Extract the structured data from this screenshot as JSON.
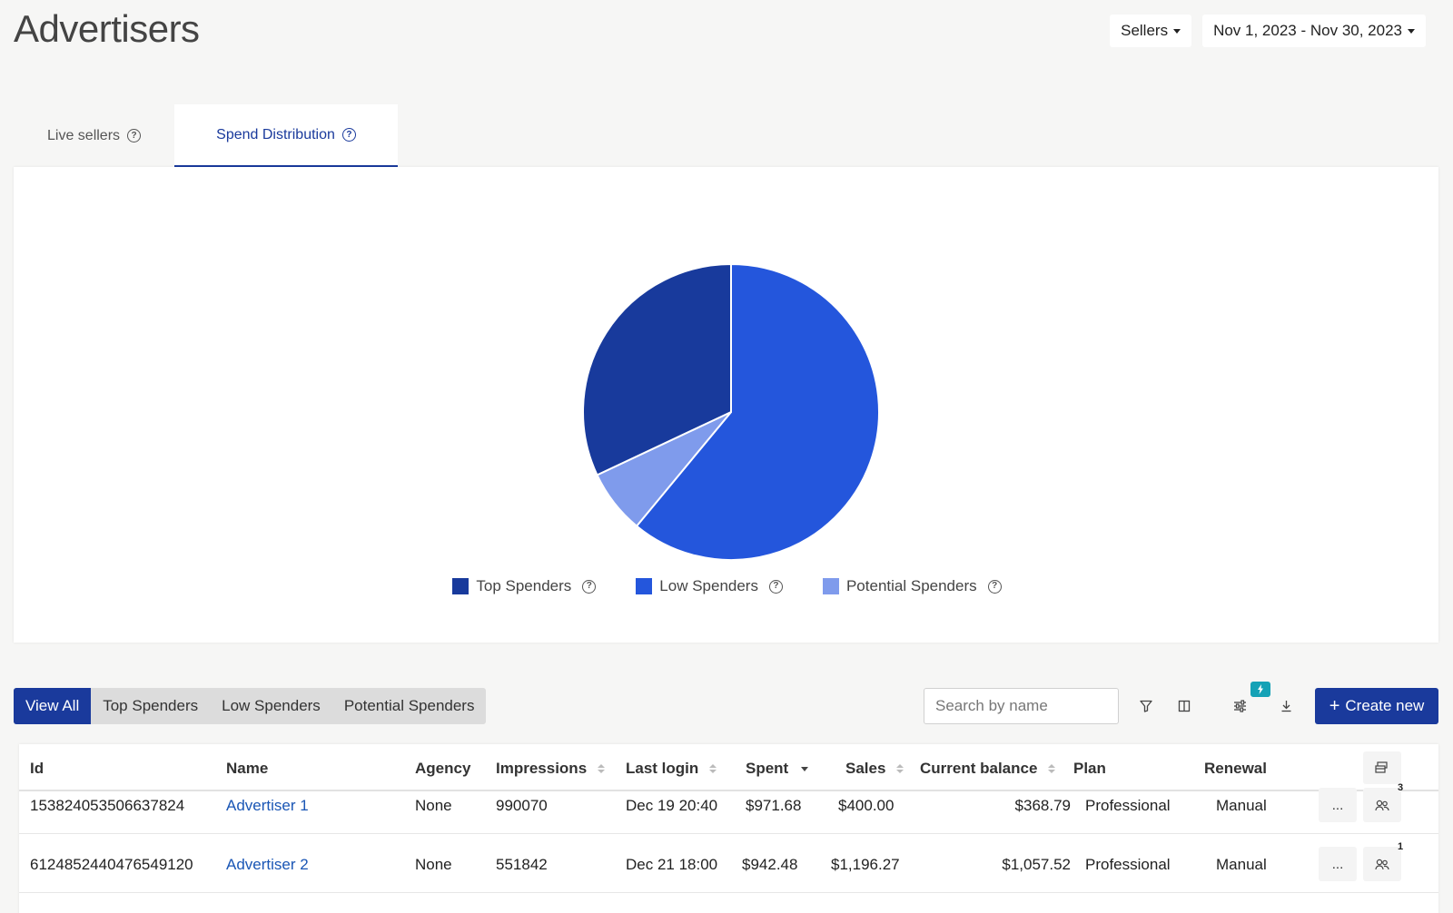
{
  "header": {
    "title": "Advertisers"
  },
  "filters": {
    "sellers_label": "Sellers",
    "date_range_label": "Nov 1, 2023 - Nov 30, 2023"
  },
  "tabs": [
    {
      "label": "Live sellers"
    },
    {
      "label": "Spend Distribution"
    }
  ],
  "colors": {
    "top": "#183a9c",
    "low": "#2456dc",
    "potential": "#7f9bec",
    "accent": "#1a3a9c"
  },
  "chart_data": {
    "type": "pie",
    "slices": [
      {
        "label": "Top Spenders",
        "value": 32
      },
      {
        "label": "Low Spenders",
        "value": 61
      },
      {
        "label": "Potential Spenders",
        "value": 7
      }
    ],
    "legend_position": "bottom"
  },
  "segments": [
    {
      "label": "View All"
    },
    {
      "label": "Top Spenders"
    },
    {
      "label": "Low Spenders"
    },
    {
      "label": "Potential Spenders"
    }
  ],
  "toolbar": {
    "search_placeholder": "Search by name",
    "create_label": "Create new",
    "icons": [
      "filter-icon",
      "columns-icon",
      "sliders-icon",
      "download-icon",
      "bolt-icon",
      "plus-icon"
    ]
  },
  "table": {
    "columns": [
      "Id",
      "Name",
      "Agency",
      "Impressions",
      "Last login",
      "Spent",
      "Sales",
      "Current balance",
      "Plan",
      "Renewal"
    ],
    "rows": [
      {
        "id": "153824053506637824",
        "name": "Advertiser 1",
        "agency": "None",
        "impressions": "990070",
        "last_login": "Dec 19 20:40",
        "spent": "$971.68",
        "sales": "$400.00",
        "balance": "$368.79",
        "plan": "Professional",
        "renewal": "Manual",
        "more": "...",
        "user_count": "3"
      },
      {
        "id": "6124852440476549120",
        "name": "Advertiser 2",
        "agency": "None",
        "impressions": "551842",
        "last_login": "Dec 21 18:00",
        "spent": "$942.48",
        "sales": "$1,196.27",
        "balance": "$1,057.52",
        "plan": "Professional",
        "renewal": "Manual",
        "more": "...",
        "user_count": "1"
      }
    ]
  }
}
